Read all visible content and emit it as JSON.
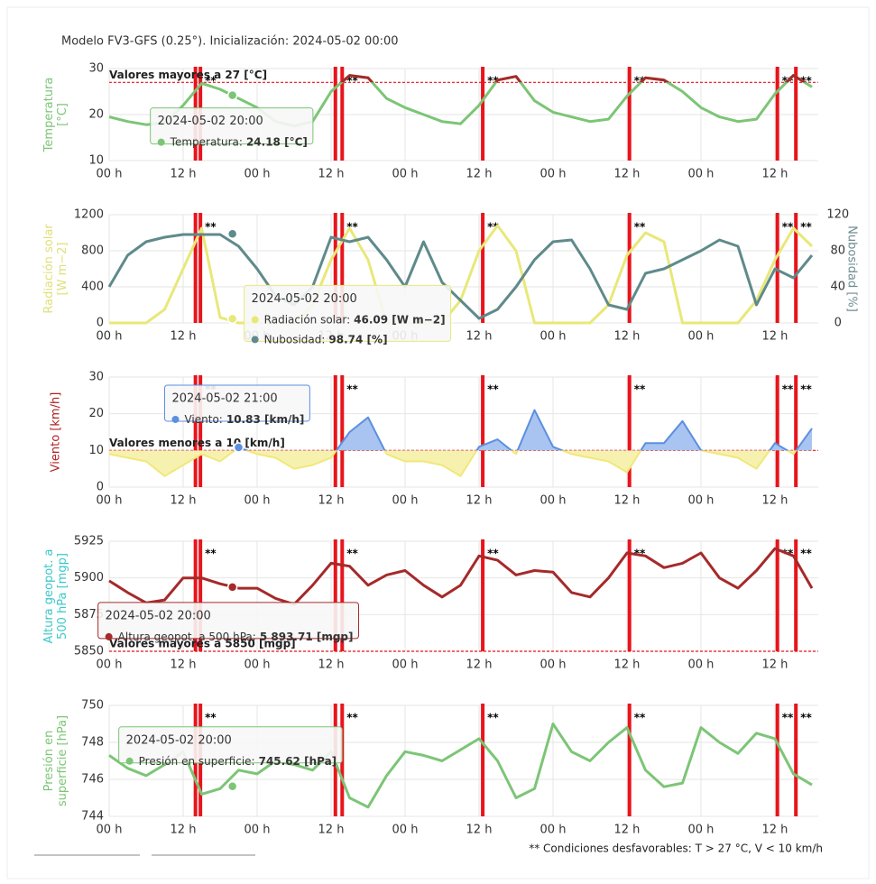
{
  "header": {
    "title": "Modelo FV3-GFS (0.25°). Inicialización: 2024-05-02 00:00"
  },
  "footer": {
    "note": "** Condiciones desfavorables: T > 27 °C, V < 10 km/h"
  },
  "alerts": {
    "label": "**",
    "groups": [
      [
        14,
        14.8
      ],
      [
        36.7,
        37.8
      ],
      [
        60.6
      ],
      [
        84.4
      ],
      [
        108.4
      ],
      [
        111.4
      ]
    ],
    "color": "#e8141c"
  },
  "chart_data": [
    {
      "type": "line",
      "y_title": [
        "Temperatura",
        "[°C]"
      ],
      "y_title_color": "#7cc576",
      "xlim": [
        0,
        115
      ],
      "xticks": [
        {
          "value": 0,
          "label": "00 h"
        },
        {
          "value": 12,
          "label": "12 h"
        },
        {
          "value": 24,
          "label": "00 h"
        },
        {
          "value": 36,
          "label": "12 h"
        },
        {
          "value": 48,
          "label": "00 h"
        },
        {
          "value": 60,
          "label": "12 h"
        },
        {
          "value": 72,
          "label": "00 h"
        },
        {
          "value": 84,
          "label": "12 h"
        },
        {
          "value": 96,
          "label": "00 h"
        },
        {
          "value": 108,
          "label": "12 h"
        }
      ],
      "ylim": [
        10,
        30
      ],
      "yticks": [
        10,
        20,
        30
      ],
      "grid": true,
      "plot_line": {
        "value": 27,
        "label": "Valores mayores a 27 [°C]",
        "color": "#e8141c"
      },
      "x": [
        0,
        3,
        6,
        9,
        12,
        15,
        18,
        21,
        24,
        27,
        30,
        33,
        36,
        39,
        42,
        45,
        48,
        51,
        54,
        57,
        60,
        63,
        66,
        69,
        72,
        75,
        78,
        81,
        84,
        87,
        90,
        93,
        96,
        99,
        102,
        105,
        108,
        111,
        114
      ],
      "series": [
        {
          "name": "Temperatura",
          "color": "#7cc576",
          "color_above": "#a52a2a",
          "values": [
            19.5,
            18.5,
            17.8,
            18.2,
            22,
            26.8,
            25.5,
            23.5,
            21.5,
            18.5,
            17.5,
            18.5,
            25,
            28.5,
            28,
            23.5,
            21.5,
            20,
            18.5,
            18,
            22,
            27.5,
            28.3,
            23,
            20.5,
            19.5,
            18.5,
            19,
            24,
            28,
            27.5,
            25,
            21.5,
            19.5,
            18.5,
            19,
            24.5,
            28.5,
            26
          ]
        }
      ],
      "tooltip": {
        "title": "2024-05-02 20:00",
        "x": 20,
        "items": [
          {
            "label": "Temperatura:",
            "value": 24.18,
            "value_label": "24.18 [°C]",
            "color": "#7cc576"
          }
        ]
      }
    },
    {
      "type": "line",
      "y_title": [
        "Radiación solar",
        "[W m−2]"
      ],
      "y_title_color": "#e0e07a",
      "y2_title": [
        "Nubosidad [%]"
      ],
      "y2_title_color": "#6e8e92",
      "xlim": [
        0,
        115
      ],
      "xticks": [
        {
          "value": 0,
          "label": "00 h"
        },
        {
          "value": 12,
          "label": "12 h"
        },
        {
          "value": 24,
          "label": "00 h"
        },
        {
          "value": 36,
          "label": "12 h"
        },
        {
          "value": 48,
          "label": "00 h"
        },
        {
          "value": 60,
          "label": "12 h"
        },
        {
          "value": 72,
          "label": "00 h"
        },
        {
          "value": 84,
          "label": "12 h"
        },
        {
          "value": 96,
          "label": "00 h"
        },
        {
          "value": 108,
          "label": "12 h"
        }
      ],
      "ylim": [
        0,
        1200
      ],
      "yticks": [
        0,
        400,
        800,
        1200
      ],
      "y2lim": [
        0,
        120
      ],
      "y2ticks": [
        0,
        40,
        80,
        120
      ],
      "grid": true,
      "x": [
        0,
        3,
        6,
        9,
        12,
        15,
        18,
        21,
        24,
        27,
        30,
        33,
        36,
        39,
        42,
        45,
        48,
        51,
        54,
        57,
        60,
        63,
        66,
        69,
        72,
        75,
        78,
        81,
        84,
        87,
        90,
        93,
        96,
        99,
        102,
        105,
        108,
        111,
        114
      ],
      "series": [
        {
          "name": "Radiación solar",
          "color": "#e8e87a",
          "values": [
            0,
            0,
            0,
            150,
            600,
            1050,
            60,
            0,
            0,
            0,
            0,
            200,
            700,
            1050,
            700,
            0,
            0,
            0,
            0,
            250,
            800,
            1080,
            800,
            0,
            0,
            0,
            0,
            200,
            750,
            1000,
            900,
            0,
            0,
            0,
            0,
            250,
            700,
            1050,
            850
          ]
        },
        {
          "name": "Nubosidad",
          "color": "#5f8a8b",
          "axis": "y2",
          "values": [
            40,
            75,
            90,
            95,
            98,
            98,
            98,
            85,
            60,
            30,
            20,
            40,
            95,
            90,
            95,
            70,
            40,
            90,
            45,
            25,
            5,
            15,
            40,
            70,
            90,
            92,
            60,
            20,
            15,
            55,
            60,
            70,
            80,
            92,
            85,
            20,
            60,
            50,
            75
          ]
        }
      ],
      "tooltip": {
        "title": "2024-05-02 20:00",
        "x": 20,
        "items": [
          {
            "label": "Radiación solar:",
            "value": 46.09,
            "value_label": "46.09 [W m−2]",
            "color": "#e8e87a"
          },
          {
            "label": "Nubosidad:",
            "value": 98.74,
            "value_label": "98.74 [%]",
            "color": "#5f8a8b",
            "axis": "y2"
          }
        ]
      }
    },
    {
      "type": "area",
      "y_title": [
        "Viento [km/h]"
      ],
      "y_title_color": "#b22222",
      "xlim": [
        0,
        115
      ],
      "xticks": [
        {
          "value": 0,
          "label": "00 h"
        },
        {
          "value": 12,
          "label": "12 h"
        },
        {
          "value": 24,
          "label": "00 h"
        },
        {
          "value": 36,
          "label": "12 h"
        },
        {
          "value": 48,
          "label": "00 h"
        },
        {
          "value": 60,
          "label": "12 h"
        },
        {
          "value": 72,
          "label": "00 h"
        },
        {
          "value": 84,
          "label": "12 h"
        },
        {
          "value": 96,
          "label": "00 h"
        },
        {
          "value": 108,
          "label": "12 h"
        }
      ],
      "ylim": [
        0,
        30
      ],
      "yticks": [
        0,
        10,
        20,
        30
      ],
      "grid": true,
      "plot_line": {
        "value": 10,
        "label": "Valores menores a 10 [km/h]",
        "color": "#e8141c"
      },
      "x": [
        0,
        3,
        6,
        9,
        12,
        15,
        18,
        21,
        24,
        27,
        30,
        33,
        36,
        39,
        42,
        45,
        48,
        51,
        54,
        57,
        60,
        63,
        66,
        69,
        72,
        75,
        78,
        81,
        84,
        87,
        90,
        93,
        96,
        99,
        102,
        105,
        108,
        111,
        114
      ],
      "series": [
        {
          "name": "Viento",
          "color": "#5b8fe0",
          "fill_above": "#a9c4f0",
          "color_below": "#f0e87a",
          "fill_below": "#f7f1b0",
          "values": [
            9,
            8,
            7,
            3,
            6,
            9,
            7,
            10.8,
            9,
            8,
            5,
            6,
            8,
            15,
            19,
            9,
            7,
            7,
            6,
            3,
            11,
            13,
            9,
            21,
            11,
            9,
            8,
            7,
            4,
            12,
            12,
            18,
            10,
            9,
            8,
            5,
            12,
            9,
            16
          ]
        }
      ],
      "tooltip": {
        "title": "2024-05-02 21:00",
        "x": 21,
        "items": [
          {
            "label": "Viento:",
            "value": 10.83,
            "value_label": "10.83 [km/h]",
            "color": "#5b8fe0"
          }
        ]
      }
    },
    {
      "type": "line",
      "y_title": [
        "Altura geopot. a",
        "500 hPa [mgp]"
      ],
      "y_title_color": "#3cc8c8",
      "xlim": [
        0,
        115
      ],
      "xticks": [
        {
          "value": 0,
          "label": "00 h"
        },
        {
          "value": 12,
          "label": "12 h"
        },
        {
          "value": 24,
          "label": "00 h"
        },
        {
          "value": 36,
          "label": "12 h"
        },
        {
          "value": 48,
          "label": "00 h"
        },
        {
          "value": 60,
          "label": "12 h"
        },
        {
          "value": 72,
          "label": "00 h"
        },
        {
          "value": 84,
          "label": "12 h"
        },
        {
          "value": 96,
          "label": "00 h"
        },
        {
          "value": 108,
          "label": "12 h"
        }
      ],
      "ylim": [
        5850,
        5925
      ],
      "yticks": [
        5850,
        5875,
        5900,
        5925
      ],
      "grid": true,
      "plot_line": {
        "value": 5850,
        "label": "Valores mayores a 5850 [mgp]",
        "color": "#e8141c"
      },
      "x": [
        0,
        3,
        6,
        9,
        12,
        15,
        18,
        21,
        24,
        27,
        30,
        33,
        36,
        39,
        42,
        45,
        48,
        51,
        54,
        57,
        60,
        63,
        66,
        69,
        72,
        75,
        78,
        81,
        84,
        87,
        90,
        93,
        96,
        99,
        102,
        105,
        108,
        111,
        114
      ],
      "series": [
        {
          "name": "Altura geopot. a 500 hPa",
          "color": "#a52a2a",
          "values": [
            5898,
            5890,
            5883,
            5885,
            5900,
            5900,
            5896,
            5893,
            5893,
            5886,
            5882,
            5895,
            5910,
            5908,
            5895,
            5902,
            5905,
            5895,
            5887,
            5895,
            5915,
            5912,
            5902,
            5905,
            5904,
            5890,
            5887,
            5900,
            5917,
            5915,
            5907,
            5910,
            5917,
            5900,
            5893,
            5905,
            5920,
            5915,
            5893
          ]
        }
      ],
      "tooltip": {
        "title": "2024-05-02 20:00",
        "x": 20,
        "items": [
          {
            "label": "Altura geopot. a 500 hPa:",
            "value": 5893.71,
            "value_label": "5 893.71 [mgp]",
            "color": "#a52a2a"
          }
        ]
      }
    },
    {
      "type": "line",
      "y_title": [
        "Presión en",
        "superficie [hPa]"
      ],
      "y_title_color": "#7cc576",
      "xlim": [
        0,
        115
      ],
      "xticks": [
        {
          "value": 0,
          "label": "00 h"
        },
        {
          "value": 12,
          "label": "12 h"
        },
        {
          "value": 24,
          "label": "00 h"
        },
        {
          "value": 36,
          "label": "12 h"
        },
        {
          "value": 48,
          "label": "00 h"
        },
        {
          "value": 60,
          "label": "12 h"
        },
        {
          "value": 72,
          "label": "00 h"
        },
        {
          "value": 84,
          "label": "12 h"
        },
        {
          "value": 96,
          "label": "00 h"
        },
        {
          "value": 108,
          "label": "12 h"
        }
      ],
      "ylim": [
        744,
        750
      ],
      "yticks": [
        744,
        746,
        748,
        750
      ],
      "grid": true,
      "x": [
        0,
        3,
        6,
        9,
        12,
        15,
        18,
        21,
        24,
        27,
        30,
        33,
        36,
        39,
        42,
        45,
        48,
        51,
        54,
        57,
        60,
        63,
        66,
        69,
        72,
        75,
        78,
        81,
        84,
        87,
        90,
        93,
        96,
        99,
        102,
        105,
        108,
        111,
        114
      ],
      "series": [
        {
          "name": "Presión en superficie",
          "color": "#7cc576",
          "values": [
            747.3,
            746.6,
            746.2,
            746.8,
            747.5,
            745.2,
            745.5,
            746.5,
            746.3,
            747,
            746.8,
            746.5,
            747.5,
            745,
            744.5,
            746.2,
            747.5,
            747.3,
            747,
            747.6,
            748.2,
            747,
            745,
            745.5,
            749,
            747.5,
            747,
            748,
            748.8,
            746.5,
            745.6,
            745.8,
            748.8,
            748,
            747.4,
            748.5,
            748.2,
            746.3,
            745.7
          ]
        }
      ],
      "tooltip": {
        "title": "2024-05-02 20:00",
        "x": 20,
        "items": [
          {
            "label": "Presión en superficie:",
            "value": 745.62,
            "value_label": "745.62 [hPa]",
            "color": "#7cc576"
          }
        ]
      }
    }
  ]
}
